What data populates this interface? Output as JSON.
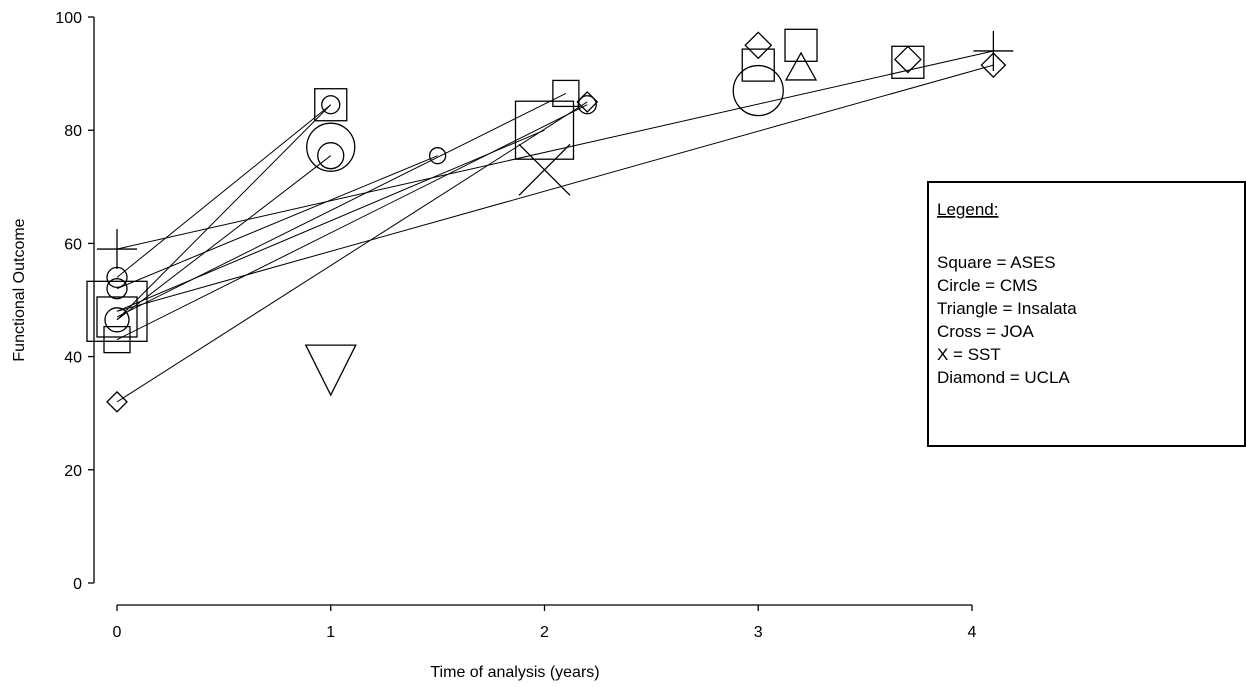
{
  "chart_data": {
    "type": "scatter",
    "title": "",
    "xlabel": "Time of analysis (years)",
    "ylabel": "Functional Outcome",
    "xlim": [
      0,
      4
    ],
    "ylim": [
      0,
      100
    ],
    "x_ticks": [
      "0",
      "1",
      "2",
      "3",
      "4"
    ],
    "y_ticks": [
      "0",
      "20",
      "40",
      "60",
      "80",
      "100"
    ],
    "grid": false,
    "legend": {
      "placement": "right",
      "title": "Legend:",
      "entries": [
        "Square = ASES",
        "Circle = CMS",
        "Triangle = Insalata",
        "Cross = JOA",
        "X = SST",
        "Diamond = UCLA"
      ]
    },
    "points": [
      {
        "shape": "square",
        "x": 0,
        "y": 48,
        "size": 3
      },
      {
        "shape": "square",
        "x": 0,
        "y": 47,
        "size": 2
      },
      {
        "shape": "square",
        "x": 0,
        "y": 43,
        "size": 1.3
      },
      {
        "shape": "circle",
        "x": 0,
        "y": 54,
        "size": 1
      },
      {
        "shape": "circle",
        "x": 0,
        "y": 52,
        "size": 1
      },
      {
        "shape": "circle",
        "x": 0,
        "y": 46.5,
        "size": 1.2
      },
      {
        "shape": "cross",
        "x": 0,
        "y": 59,
        "size": 2
      },
      {
        "shape": "diamond",
        "x": 0,
        "y": 32,
        "size": 1
      },
      {
        "shape": "square",
        "x": 1,
        "y": 84.5,
        "size": 1.6
      },
      {
        "shape": "circle",
        "x": 1,
        "y": 84.5,
        "size": 0.9
      },
      {
        "shape": "circle",
        "x": 1,
        "y": 77,
        "size": 2.4
      },
      {
        "shape": "circle",
        "x": 1,
        "y": 75.5,
        "size": 1.3
      },
      {
        "shape": "triangle-down",
        "x": 1,
        "y": 38.5,
        "size": 2.5
      },
      {
        "shape": "circle",
        "x": 1.5,
        "y": 75.5,
        "size": 0.8
      },
      {
        "shape": "square",
        "x": 2,
        "y": 80,
        "size": 2.9
      },
      {
        "shape": "x",
        "x": 2,
        "y": 73,
        "size": 3
      },
      {
        "shape": "square",
        "x": 2.1,
        "y": 86.5,
        "size": 1.3
      },
      {
        "shape": "circle",
        "x": 2.2,
        "y": 84.5,
        "size": 0.9
      },
      {
        "shape": "diamond",
        "x": 2.2,
        "y": 85,
        "size": 1
      },
      {
        "shape": "circle",
        "x": 3,
        "y": 87,
        "size": 2.5
      },
      {
        "shape": "square",
        "x": 3,
        "y": 91.5,
        "size": 1.6
      },
      {
        "shape": "diamond",
        "x": 3,
        "y": 95,
        "size": 1.3
      },
      {
        "shape": "square",
        "x": 3.2,
        "y": 95,
        "size": 1.6
      },
      {
        "shape": "triangle-up",
        "x": 3.2,
        "y": 91,
        "size": 1.5
      },
      {
        "shape": "square",
        "x": 3.7,
        "y": 92,
        "size": 1.6
      },
      {
        "shape": "diamond",
        "x": 3.7,
        "y": 92.5,
        "size": 1.3
      },
      {
        "shape": "cross",
        "x": 4.1,
        "y": 94,
        "size": 2
      },
      {
        "shape": "diamond",
        "x": 4.1,
        "y": 91.5,
        "size": 1.2
      }
    ],
    "lines": [
      {
        "from": [
          0,
          59
        ],
        "to": [
          4.1,
          94
        ]
      },
      {
        "from": [
          0,
          32
        ],
        "to": [
          2.2,
          85
        ]
      },
      {
        "from": [
          0,
          48
        ],
        "to": [
          4.1,
          91.5
        ]
      },
      {
        "from": [
          0,
          54
        ],
        "to": [
          1,
          84.5
        ]
      },
      {
        "from": [
          0,
          52
        ],
        "to": [
          1.5,
          75.5
        ]
      },
      {
        "from": [
          0,
          46.5
        ],
        "to": [
          1,
          84.5
        ]
      },
      {
        "from": [
          0,
          46.5
        ],
        "to": [
          1,
          75.5
        ]
      },
      {
        "from": [
          0,
          47
        ],
        "to": [
          2.1,
          86.5
        ]
      },
      {
        "from": [
          0,
          48
        ],
        "to": [
          2,
          80
        ]
      },
      {
        "from": [
          0,
          43
        ],
        "to": [
          2.2,
          84.5
        ]
      }
    ]
  }
}
